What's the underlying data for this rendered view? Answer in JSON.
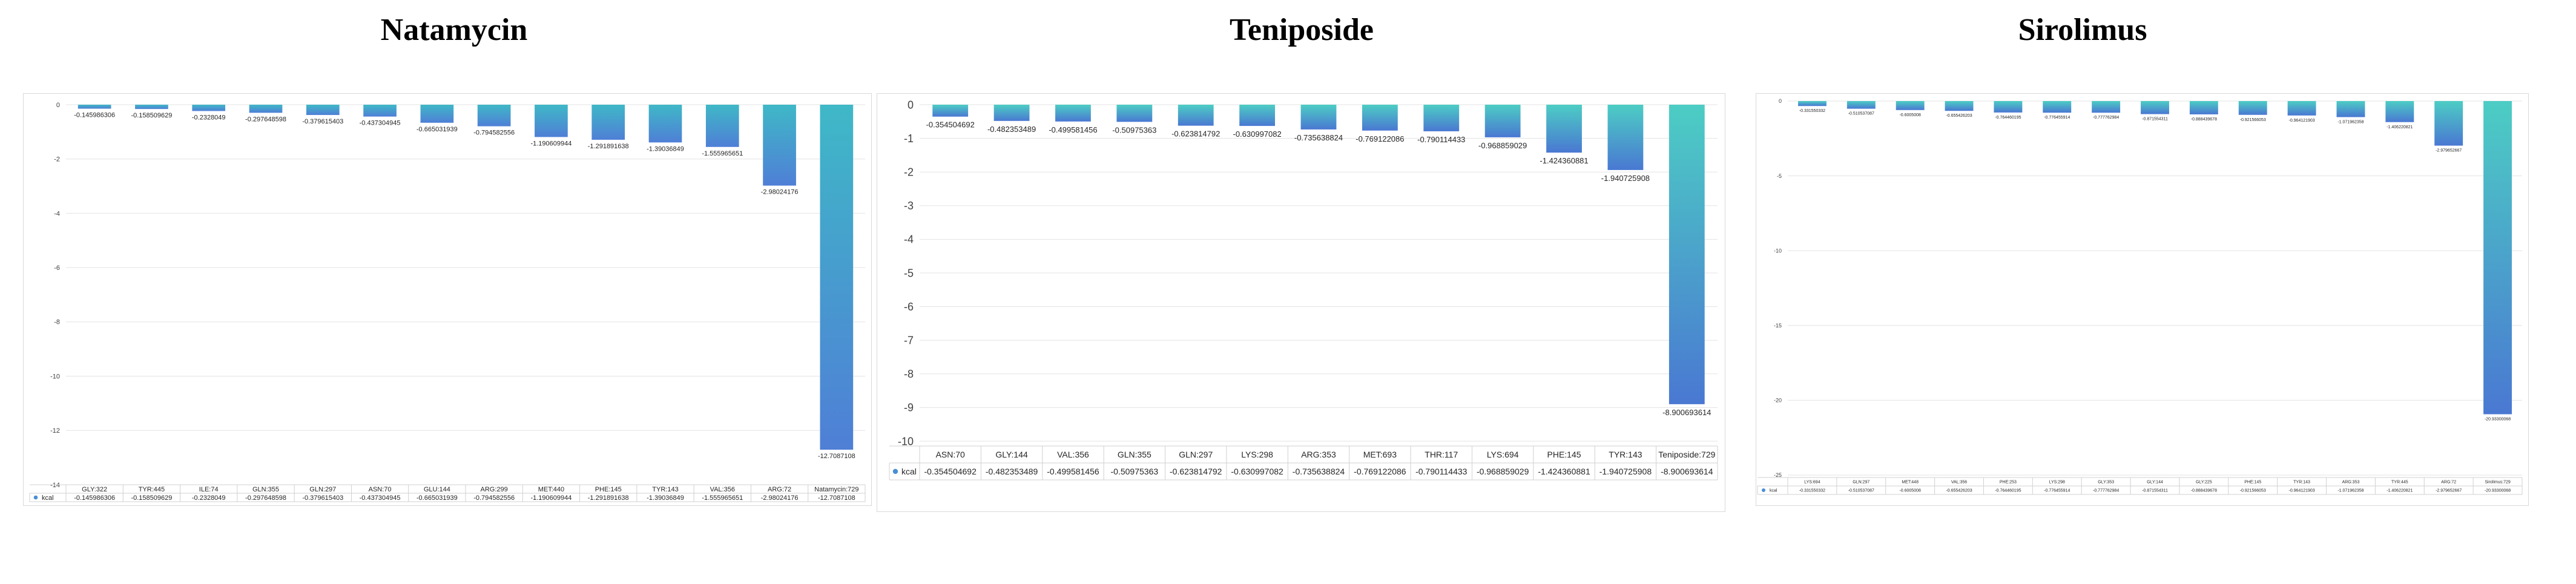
{
  "titles": [
    "Natamycin",
    "Teniposide",
    "Sirolimus"
  ],
  "chart_data": [
    {
      "type": "bar",
      "title": "Natamycin",
      "legend": "kcal",
      "ylim": [
        -14,
        0
      ],
      "yticks": [
        "0",
        "-2",
        "-4",
        "-6",
        "-8",
        "-10",
        "-12",
        "-14"
      ],
      "categories": [
        "GLY:322",
        "TYR:445",
        "ILE:74",
        "GLN:355",
        "GLN:297",
        "ASN:70",
        "GLU:144",
        "ARG:299",
        "MET:440",
        "PHE:145",
        "TYR:143",
        "VAL:356",
        "ARG:72",
        "Natamycin:729"
      ],
      "values": [
        -0.145986306,
        -0.158509629,
        -0.2328049,
        -0.297648598,
        -0.379615403,
        -0.437304945,
        -0.665031939,
        -0.794582556,
        -1.190609944,
        -1.291891638,
        -1.39036849,
        -1.555965651,
        -2.98024176,
        -12.7087108
      ],
      "value_labels": [
        "-0.145986306",
        "-0.158509629",
        "-0.2328049",
        "-0.297648598",
        "-0.379615403",
        "-0.437304945",
        "-0.665031939",
        "-0.794582556",
        "-1.190609944",
        "-1.291891638",
        "-1.39036849",
        "-1.555965651",
        "-2.98024176",
        "-12.7087108"
      ]
    },
    {
      "type": "bar",
      "title": "Teniposide",
      "legend": "kcal",
      "ylim": [
        -10,
        0
      ],
      "yticks": [
        "0",
        "-1",
        "-2",
        "-3",
        "-4",
        "-5",
        "-6",
        "-7",
        "-8",
        "-9",
        "-10"
      ],
      "categories": [
        "ASN:70",
        "GLY:144",
        "VAL:356",
        "GLN:355",
        "GLN:297",
        "LYS:298",
        "ARG:353",
        "MET:693",
        "THR:117",
        "LYS:694",
        "PHE:145",
        "TYR:143",
        "Teniposide:729"
      ],
      "values": [
        -0.354504692,
        -0.482353489,
        -0.499581456,
        -0.50975363,
        -0.623814792,
        -0.630997082,
        -0.735638824,
        -0.769122086,
        -0.790114433,
        -0.968859029,
        -1.424360881,
        -1.940725908,
        -8.900693614
      ],
      "value_labels": [
        "-0.354504692",
        "-0.482353489",
        "-0.499581456",
        "-0.50975363",
        "-0.623814792",
        "-0.630997082",
        "-0.735638824",
        "-0.769122086",
        "-0.790114433",
        "-0.968859029",
        "-1.424360881",
        "-1.940725908",
        "-8.900693614"
      ]
    },
    {
      "type": "bar",
      "title": "Sirolimus",
      "legend": "kcal",
      "ylim": [
        -25,
        0
      ],
      "yticks": [
        "0",
        "-5",
        "-10",
        "-15",
        "-20",
        "-25"
      ],
      "categories": [
        "LYS:694",
        "GLN:297",
        "MET:448",
        "VAL:356",
        "PHE:253",
        "LYS:298",
        "GLY:353",
        "GLY:144",
        "GLY:225",
        "PHE:145",
        "TYR:143",
        "ARG:353",
        "TYR:445",
        "ARG:72",
        "Sirolimus:729"
      ],
      "values": [
        -0.331550332,
        -0.510537087,
        -0.6005008,
        -0.655426203,
        -0.764460195,
        -0.776455914,
        -0.777762984,
        -0.871554311,
        -0.888439678,
        -0.921566053,
        -0.964121903,
        -1.071962358,
        -1.406220821,
        -2.979652667,
        -20.93300068
      ],
      "value_labels": [
        "-0.331550332",
        "-0.510537087",
        "-0.6005008",
        "-0.655426203",
        "-0.764460195",
        "-0.776455914",
        "-0.777762984",
        "-0.871554311",
        "-0.888439678",
        "-0.921566053",
        "-0.964121903",
        "-1.071962358",
        "-1.406220821",
        "-2.979652667",
        "-20.93300068"
      ]
    }
  ]
}
